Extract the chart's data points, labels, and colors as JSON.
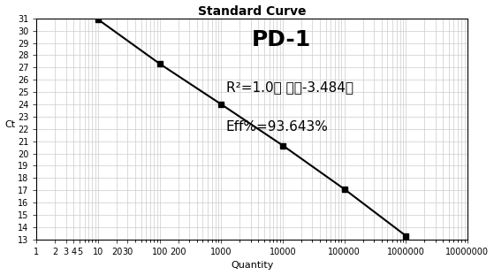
{
  "title": "Standard Curve",
  "xlabel": "Quantity",
  "ylabel": "Ct",
  "x_data": [
    10,
    100,
    1000,
    10000,
    100000,
    1000000
  ],
  "y_data": [
    30.9,
    27.3,
    24.0,
    20.65,
    17.1,
    13.3
  ],
  "annotation_title": "PD-1",
  "annotation_line1": "R²=1.0， 斜率-3.484，",
  "annotation_line2": "Eff%=93.643%",
  "line_color": "#000000",
  "marker": "s",
  "marker_color": "#000000",
  "marker_size": 4,
  "ylim": [
    13,
    31
  ],
  "yticks": [
    13,
    14,
    15,
    16,
    17,
    18,
    19,
    20,
    21,
    22,
    23,
    24,
    25,
    26,
    27,
    28,
    29,
    30,
    31
  ],
  "xlim_log": [
    1,
    10000000
  ],
  "background_color": "#ffffff",
  "grid_color": "#cccccc",
  "title_fontsize": 10,
  "label_fontsize": 8,
  "tick_fontsize": 7,
  "annotation_title_fontsize": 18,
  "annotation_text_fontsize": 11
}
